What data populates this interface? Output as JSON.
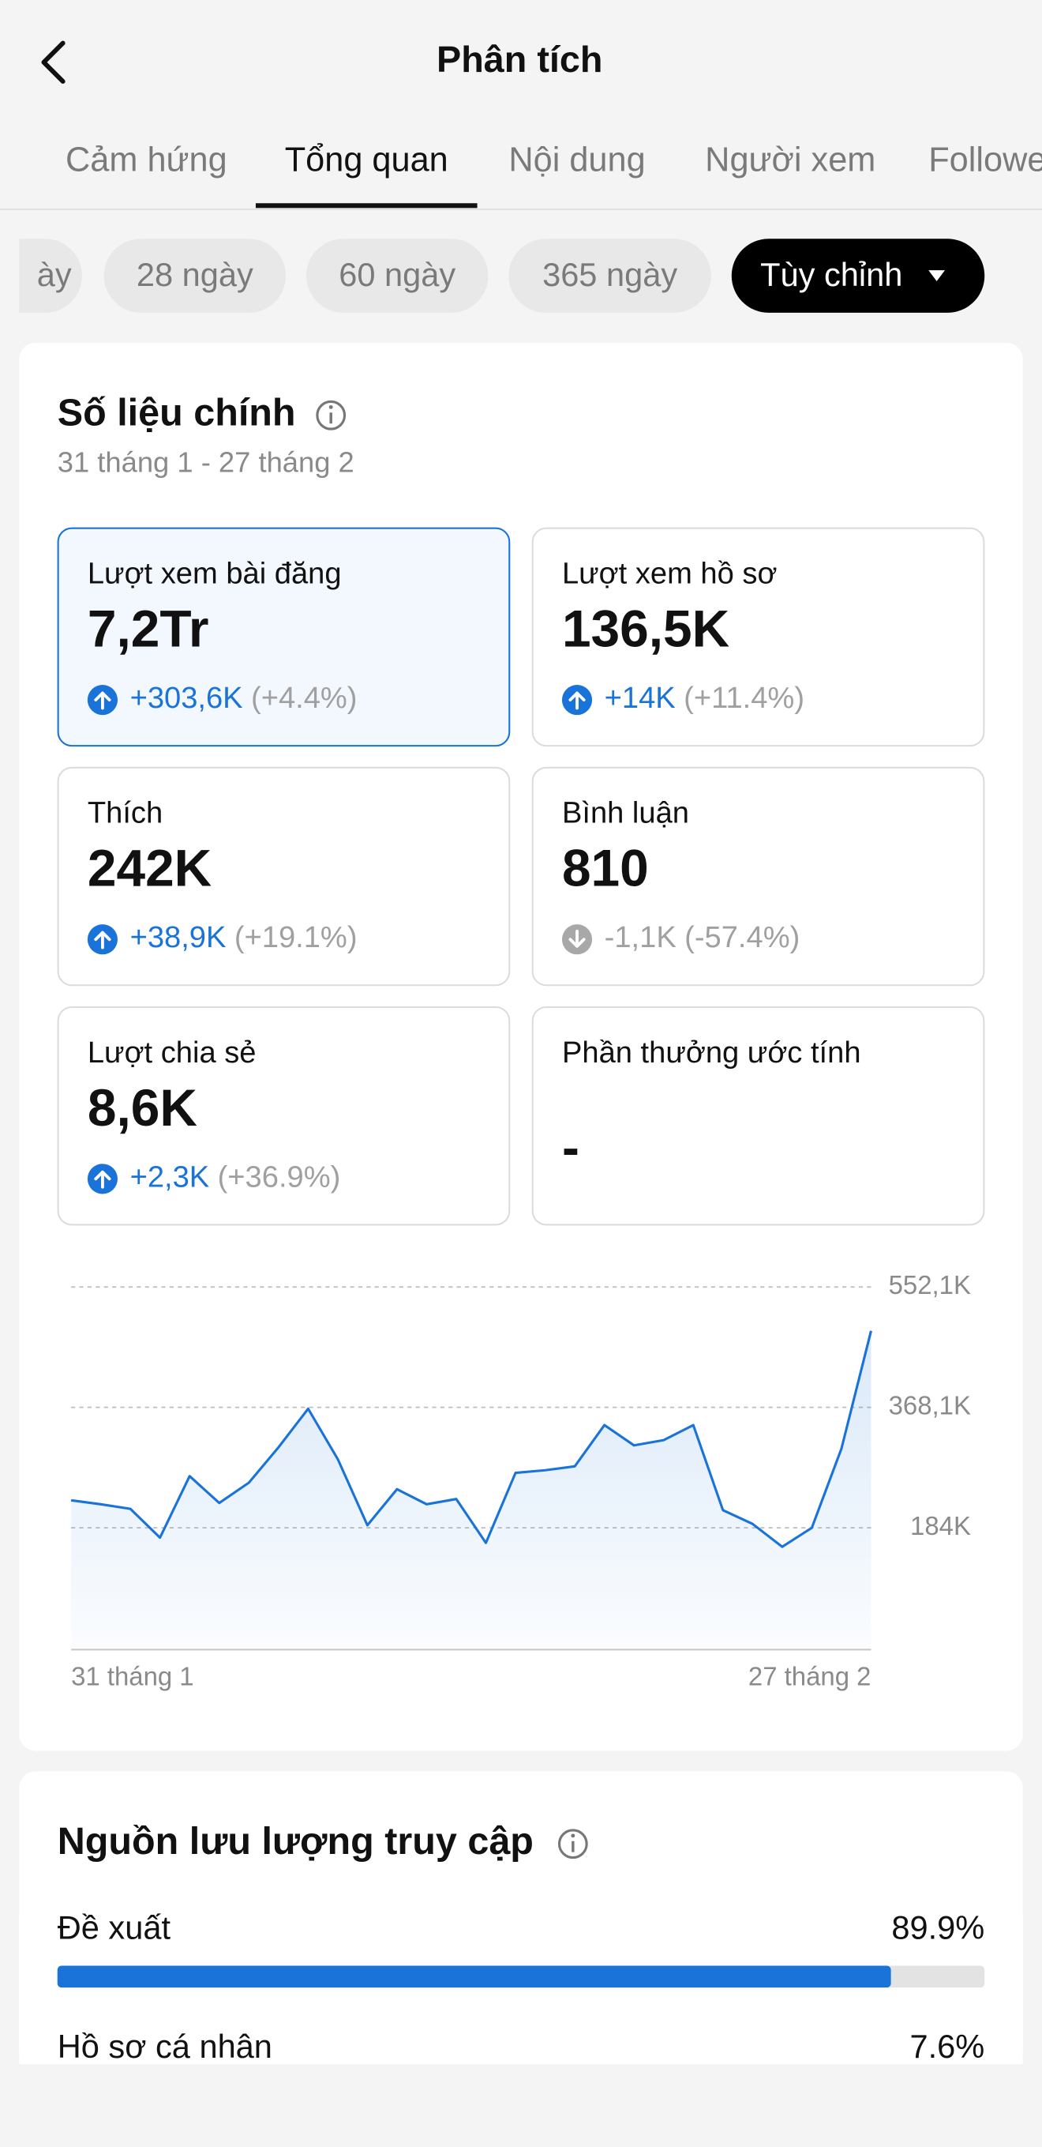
{
  "header": {
    "title": "Phân tích"
  },
  "tabs": [
    "Cảm hứng",
    "Tổng quan",
    "Nội dung",
    "Người xem",
    "Followers"
  ],
  "active_tab": 1,
  "chips": [
    "ày",
    "28 ngày",
    "60 ngày",
    "365 ngày",
    "Tùy chỉnh"
  ],
  "active_chip": 4,
  "key_metrics": {
    "title": "Số liệu chính",
    "date_range": "31 tháng 1 - 27 tháng 2",
    "items": [
      {
        "label": "Lượt xem bài đăng",
        "value": "7,2Tr",
        "change": "+303,6K",
        "percent": "(+4.4%)",
        "direction": "up"
      },
      {
        "label": "Lượt xem hồ sơ",
        "value": "136,5K",
        "change": "+14K",
        "percent": "(+11.4%)",
        "direction": "up"
      },
      {
        "label": "Thích",
        "value": "242K",
        "change": "+38,9K",
        "percent": "(+19.1%)",
        "direction": "up"
      },
      {
        "label": "Bình luận",
        "value": "810",
        "change": "-1,1K",
        "percent": "(-57.4%)",
        "direction": "down"
      },
      {
        "label": "Lượt chia sẻ",
        "value": "8,6K",
        "change": "+2,3K",
        "percent": "(+36.9%)",
        "direction": "up"
      },
      {
        "label": "Phần thưởng ước tính",
        "value": "-"
      }
    ]
  },
  "chart": {
    "type": "line",
    "color": "#1a73d8",
    "categories": [
      "31 tháng 1",
      null,
      null,
      null,
      null,
      null,
      null,
      null,
      null,
      null,
      null,
      null,
      null,
      null,
      null,
      null,
      null,
      null,
      null,
      null,
      null,
      null,
      null,
      null,
      null,
      null,
      null,
      "27 tháng 2"
    ],
    "values": [
      226,
      220,
      213,
      169,
      263,
      222,
      253,
      307,
      366,
      289,
      188,
      243,
      220,
      228,
      161,
      268,
      272,
      278,
      341,
      310,
      318,
      341,
      211,
      190,
      155,
      184,
      305,
      485
    ],
    "ylim": [
      0,
      552.1
    ],
    "yticks": [
      {
        "value": 184,
        "label": "184K"
      },
      {
        "value": 368.1,
        "label": "368,1K"
      },
      {
        "value": 552.1,
        "label": "552,1K"
      }
    ],
    "grid": true
  },
  "traffic": {
    "title": "Nguồn lưu lượng truy cập",
    "items": [
      {
        "name": "Đề xuất",
        "value": 89.9,
        "label": "89.9%"
      },
      {
        "name": "Hồ sơ cá nhân",
        "value": 7.6,
        "label": "7.6%"
      }
    ]
  }
}
